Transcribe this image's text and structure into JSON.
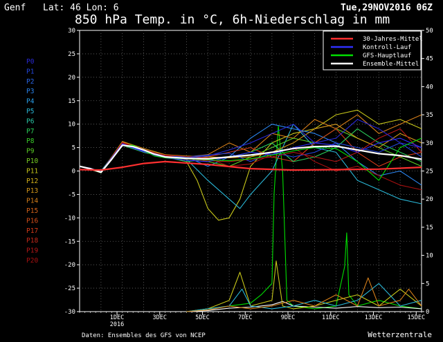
{
  "header": {
    "location": "Genf",
    "coords": "Lat: 46 Lon: 6",
    "run_time": "Tue,29NOV2016 06Z",
    "title": "850 hPa Temp. in °C, 6h-Niederschlag in mm"
  },
  "footer": {
    "source": "Daten: Ensembles des GFS von NCEP",
    "brand": "Wetterzentrale"
  },
  "members": [
    "P0",
    "P1",
    "P2",
    "P3",
    "P4",
    "P5",
    "P6",
    "P7",
    "P8",
    "P9",
    "P10",
    "P11",
    "P12",
    "P13",
    "P14",
    "P15",
    "P16",
    "P17",
    "P18",
    "P19",
    "P20"
  ],
  "member_colors": [
    "#2a2ad8",
    "#2448e0",
    "#2a66e8",
    "#2a84ee",
    "#2aa2ee",
    "#2ab8d8",
    "#2ac8a8",
    "#2ad05a",
    "#3ad02a",
    "#5ad024",
    "#7ad024",
    "#c8c81a",
    "#d8b41a",
    "#d89a1a",
    "#d8801a",
    "#d8641a",
    "#d8501a",
    "#d83c1a",
    "#c82a1a",
    "#b81818",
    "#a81010"
  ],
  "chart_data": {
    "type": "line",
    "title": "850 hPa Temp. in °C, 6h-Niederschlag in mm",
    "x_unit": "days since 29NOV2016 06Z",
    "x_range": [
      0,
      16
    ],
    "x_ticks": [
      {
        "day": 1.75,
        "label": "1DEC"
      },
      {
        "day": 3.75,
        "label": "3DEC"
      },
      {
        "day": 5.75,
        "label": "5DEC"
      },
      {
        "day": 7.75,
        "label": "7DEC"
      },
      {
        "day": 9.75,
        "label": "9DEC"
      },
      {
        "day": 11.75,
        "label": "11DEC"
      },
      {
        "day": 13.75,
        "label": "13DEC"
      },
      {
        "day": 15.75,
        "label": "15DEC"
      }
    ],
    "year_label": "2016",
    "left_axis": {
      "label": "°C",
      "range": [
        -30,
        30
      ],
      "ticks": [
        30,
        25,
        20,
        15,
        10,
        5,
        0,
        -5,
        -10,
        -15,
        -20,
        -25,
        -30
      ]
    },
    "right_axis": {
      "label": "mm",
      "range": [
        0,
        50
      ],
      "ticks": [
        50,
        45,
        40,
        35,
        30,
        25,
        20,
        15,
        10,
        5,
        0
      ]
    },
    "legend": {
      "position": "top-right",
      "entries": [
        {
          "label": "30-Jahres-Mittel",
          "color": "#ff3030"
        },
        {
          "label": "Kontroll-Lauf",
          "color": "#3030ff"
        },
        {
          "label": "GFS-Hauptlauf",
          "color": "#00e000"
        },
        {
          "label": "Ensemble-Mittel",
          "color": "#ffffff"
        }
      ]
    },
    "series": [
      {
        "name": "30-Jahres-Mittel",
        "axis": "temp",
        "x": [
          0,
          1,
          2,
          3,
          4,
          6,
          8,
          10,
          12,
          14,
          16
        ],
        "values": [
          0.3,
          0.2,
          0.8,
          1.6,
          2.0,
          1.4,
          0.5,
          0.2,
          0.3,
          0.4,
          0.8
        ]
      },
      {
        "name": "Ensemble-Mittel",
        "axis": "temp",
        "x": [
          0,
          0.5,
          1,
          1.5,
          2,
          2.5,
          3,
          3.5,
          4,
          5,
          6,
          7,
          8,
          9,
          10,
          11,
          12,
          13,
          14,
          15,
          16
        ],
        "values": [
          1.0,
          0.5,
          -0.3,
          2.5,
          5.5,
          5.2,
          4.5,
          3.6,
          3.0,
          2.7,
          2.6,
          3.0,
          3.4,
          4.0,
          4.8,
          5.2,
          5.3,
          4.5,
          3.7,
          3.3,
          2.5
        ]
      },
      {
        "name": "Kontroll-Lauf",
        "axis": "temp",
        "x": [
          0,
          0.5,
          1,
          1.5,
          2,
          2.5,
          3,
          3.5,
          4,
          5,
          6,
          7,
          8,
          9,
          10,
          11,
          12,
          13,
          14,
          15,
          16
        ],
        "values": [
          1.0,
          0.6,
          -0.2,
          2.8,
          5.8,
          5.0,
          4.2,
          3.4,
          2.8,
          2.3,
          2.0,
          3.0,
          4.0,
          3.5,
          5.0,
          6.0,
          5.5,
          4.0,
          6.0,
          7.0,
          5.0
        ]
      },
      {
        "name": "GFS-Hauptlauf",
        "axis": "temp",
        "x": [
          0,
          0.5,
          1,
          1.5,
          2,
          2.5,
          3,
          3.5,
          4,
          5,
          6,
          7,
          8,
          9,
          10,
          11,
          12,
          13,
          14,
          15,
          16
        ],
        "values": [
          1.0,
          0.4,
          -0.4,
          2.4,
          5.4,
          5.5,
          4.4,
          3.2,
          2.8,
          2.6,
          2.4,
          2.2,
          2.6,
          3.4,
          4.3,
          5.0,
          4.8,
          2.0,
          -2.0,
          5.0,
          7.0
        ]
      },
      {
        "name": "P11",
        "axis": "temp",
        "x": [
          0,
          1,
          2,
          3,
          4,
          5,
          5.5,
          6,
          6.5,
          7,
          7.5,
          8,
          9,
          10,
          11,
          12,
          13,
          14,
          15,
          16
        ],
        "values": [
          1.0,
          -0.2,
          6.0,
          4.0,
          3.0,
          2.0,
          -2.0,
          -8.0,
          -10.5,
          -10.0,
          -6.0,
          1.0,
          6.0,
          8.0,
          9.0,
          12.0,
          13.0,
          10.0,
          11.0,
          9.0
        ]
      },
      {
        "name": "P5",
        "axis": "temp",
        "x": [
          0,
          1,
          2,
          3,
          4,
          5,
          6,
          7,
          7.5,
          8,
          9,
          10,
          11,
          12,
          13,
          14,
          15,
          16
        ],
        "values": [
          1.0,
          0.0,
          6.0,
          4.0,
          3.0,
          2.5,
          -2.0,
          -6.0,
          -8.0,
          -5.0,
          0.0,
          10.0,
          5.0,
          4.0,
          -2.0,
          -4.0,
          -6.0,
          -7.0
        ]
      },
      {
        "name": "P14",
        "axis": "temp",
        "x": [
          0,
          1,
          2,
          3,
          4,
          5,
          6,
          7,
          8,
          9,
          10,
          11,
          12,
          13,
          14,
          15,
          16
        ],
        "values": [
          1.0,
          -0.2,
          6.2,
          4.2,
          3.0,
          3.0,
          3.5,
          6.0,
          4.0,
          8.0,
          7.0,
          11.0,
          9.0,
          12.0,
          8.0,
          10.0,
          12.0
        ]
      },
      {
        "name": "P3",
        "axis": "temp",
        "x": [
          0,
          1,
          2,
          3,
          4,
          5,
          6,
          7,
          8,
          9,
          10,
          11,
          12,
          13,
          14,
          15,
          16
        ],
        "values": [
          1.0,
          -0.3,
          5.8,
          4.0,
          3.0,
          3.0,
          1.0,
          3.0,
          7.0,
          10.0,
          9.0,
          8.0,
          6.0,
          2.0,
          -1.0,
          0.0,
          -3.0
        ]
      },
      {
        "name": "P9",
        "axis": "temp",
        "x": [
          0,
          1,
          2,
          3,
          4,
          5,
          6,
          7,
          8,
          9,
          10,
          11,
          12,
          13,
          14,
          15,
          16
        ],
        "values": [
          1.0,
          -0.2,
          5.8,
          4.5,
          3.5,
          3.0,
          2.0,
          1.0,
          3.0,
          5.0,
          7.0,
          6.0,
          9.0,
          7.0,
          5.0,
          3.0,
          1.0
        ]
      },
      {
        "name": "P17",
        "axis": "temp",
        "x": [
          0,
          1,
          2,
          3,
          4,
          5,
          6,
          7,
          8,
          9,
          10,
          11,
          12,
          13,
          14,
          15,
          16
        ],
        "values": [
          1.0,
          -0.3,
          6.0,
          4.0,
          3.0,
          2.5,
          3.0,
          4.0,
          5.0,
          3.0,
          2.0,
          6.0,
          9.0,
          4.0,
          1.0,
          3.0,
          4.0
        ]
      },
      {
        "name": "P7",
        "axis": "temp",
        "x": [
          0,
          1,
          2,
          3,
          4,
          5,
          6,
          7,
          8,
          9,
          10,
          11,
          12,
          13,
          14,
          15,
          16
        ],
        "values": [
          1.0,
          -0.2,
          5.5,
          4.0,
          3.0,
          2.0,
          2.5,
          3.0,
          4.0,
          6.0,
          2.0,
          3.0,
          5.0,
          9.0,
          6.0,
          4.0,
          2.0
        ]
      },
      {
        "name": "P13",
        "axis": "temp",
        "x": [
          0,
          1,
          2,
          3,
          4,
          5,
          6,
          7,
          8,
          9,
          10,
          11,
          12,
          13,
          14,
          15,
          16
        ],
        "values": [
          1.0,
          -0.3,
          6.3,
          4.8,
          3.5,
          3.2,
          3.0,
          2.8,
          3.0,
          4.0,
          6.0,
          9.0,
          10.0,
          7.0,
          5.0,
          8.0,
          6.0
        ]
      },
      {
        "name": "P1",
        "axis": "temp",
        "x": [
          0,
          1,
          2,
          3,
          4,
          5,
          6,
          7,
          8,
          9,
          10,
          11,
          12,
          13,
          14,
          15,
          16
        ],
        "values": [
          1.0,
          -0.2,
          5.9,
          4.3,
          3.2,
          3.0,
          3.4,
          3.8,
          2.0,
          4.0,
          3.0,
          4.0,
          6.0,
          5.0,
          4.0,
          6.0,
          3.0
        ]
      },
      {
        "name": "P19",
        "axis": "temp",
        "x": [
          0,
          1,
          2,
          3,
          4,
          5,
          6,
          7,
          8,
          9,
          10,
          11,
          12,
          13,
          14,
          15,
          16
        ],
        "values": [
          1.0,
          -0.4,
          6.1,
          4.6,
          3.3,
          2.6,
          2.2,
          2.0,
          2.5,
          3.0,
          4.0,
          3.0,
          2.0,
          4.0,
          7.0,
          9.0,
          4.0
        ]
      },
      {
        "name": "P20",
        "axis": "temp",
        "x": [
          0,
          1,
          2,
          3,
          4,
          5,
          6,
          7,
          8,
          9,
          10,
          11,
          12,
          13,
          14,
          15,
          16
        ],
        "values": [
          1.0,
          -0.2,
          6.0,
          4.4,
          3.4,
          3.1,
          2.8,
          1.0,
          1.5,
          3.5,
          5.0,
          2.0,
          0.0,
          1.0,
          -1.0,
          -3.0,
          -4.0
        ]
      },
      {
        "name": "P0",
        "axis": "temp",
        "x": [
          0,
          1,
          2,
          3,
          4,
          5,
          6,
          7,
          8,
          9,
          10,
          11,
          12,
          13,
          14,
          15,
          16
        ],
        "values": [
          1.0,
          -0.3,
          5.7,
          4.1,
          3.1,
          2.8,
          3.2,
          4.5,
          6.0,
          8.0,
          10.0,
          6.0,
          7.0,
          11.0,
          9.0,
          6.0,
          5.0
        ]
      },
      {
        "name": "Niederschlag GFS-Hauptlauf",
        "axis": "precip",
        "x": [
          5,
          6,
          7,
          8,
          8.5,
          9,
          9.1,
          9.3,
          9.5,
          9.7,
          10,
          11,
          12,
          12.4,
          12.5,
          12.6,
          13,
          14,
          15,
          16
        ],
        "values": [
          0,
          0.5,
          1,
          1.5,
          3,
          5,
          21,
          33,
          25,
          2,
          1,
          0.5,
          1,
          8,
          14,
          3,
          1,
          2,
          1,
          0.5
        ]
      },
      {
        "name": "Niederschlag Ensemble-Mittel",
        "axis": "precip",
        "x": [
          5,
          6,
          7,
          8,
          9,
          9.5,
          10,
          11,
          12,
          13,
          14,
          15,
          16
        ],
        "values": [
          0,
          0.2,
          0.6,
          0.8,
          1.2,
          1.8,
          1.0,
          0.8,
          0.6,
          0.9,
          0.7,
          0.8,
          0.5
        ]
      },
      {
        "name": "Niederschlag P11",
        "axis": "precip",
        "x": [
          5,
          6,
          7,
          7.5,
          8,
          9,
          9.2,
          9.5,
          10,
          11,
          12,
          13,
          14,
          15,
          16
        ],
        "values": [
          0,
          0.5,
          2,
          7,
          1,
          2,
          9,
          1,
          0.5,
          1,
          2,
          3,
          1,
          4,
          1
        ]
      },
      {
        "name": "Niederschlag P5",
        "axis": "precip",
        "x": [
          5,
          6,
          7,
          7.6,
          8,
          9,
          10,
          11,
          12,
          13,
          14,
          15,
          16
        ],
        "values": [
          0,
          0.5,
          1,
          4,
          1,
          0.5,
          1,
          2,
          1,
          2,
          5,
          1,
          2
        ]
      },
      {
        "name": "Niederschlag P14",
        "axis": "precip",
        "x": [
          5,
          6,
          7,
          8,
          9,
          10,
          11,
          12,
          13,
          13.5,
          14,
          15,
          15.4,
          16
        ],
        "values": [
          0,
          0.3,
          1,
          0.5,
          1,
          2,
          1,
          3,
          1,
          6,
          1,
          2,
          4,
          1
        ]
      }
    ]
  }
}
